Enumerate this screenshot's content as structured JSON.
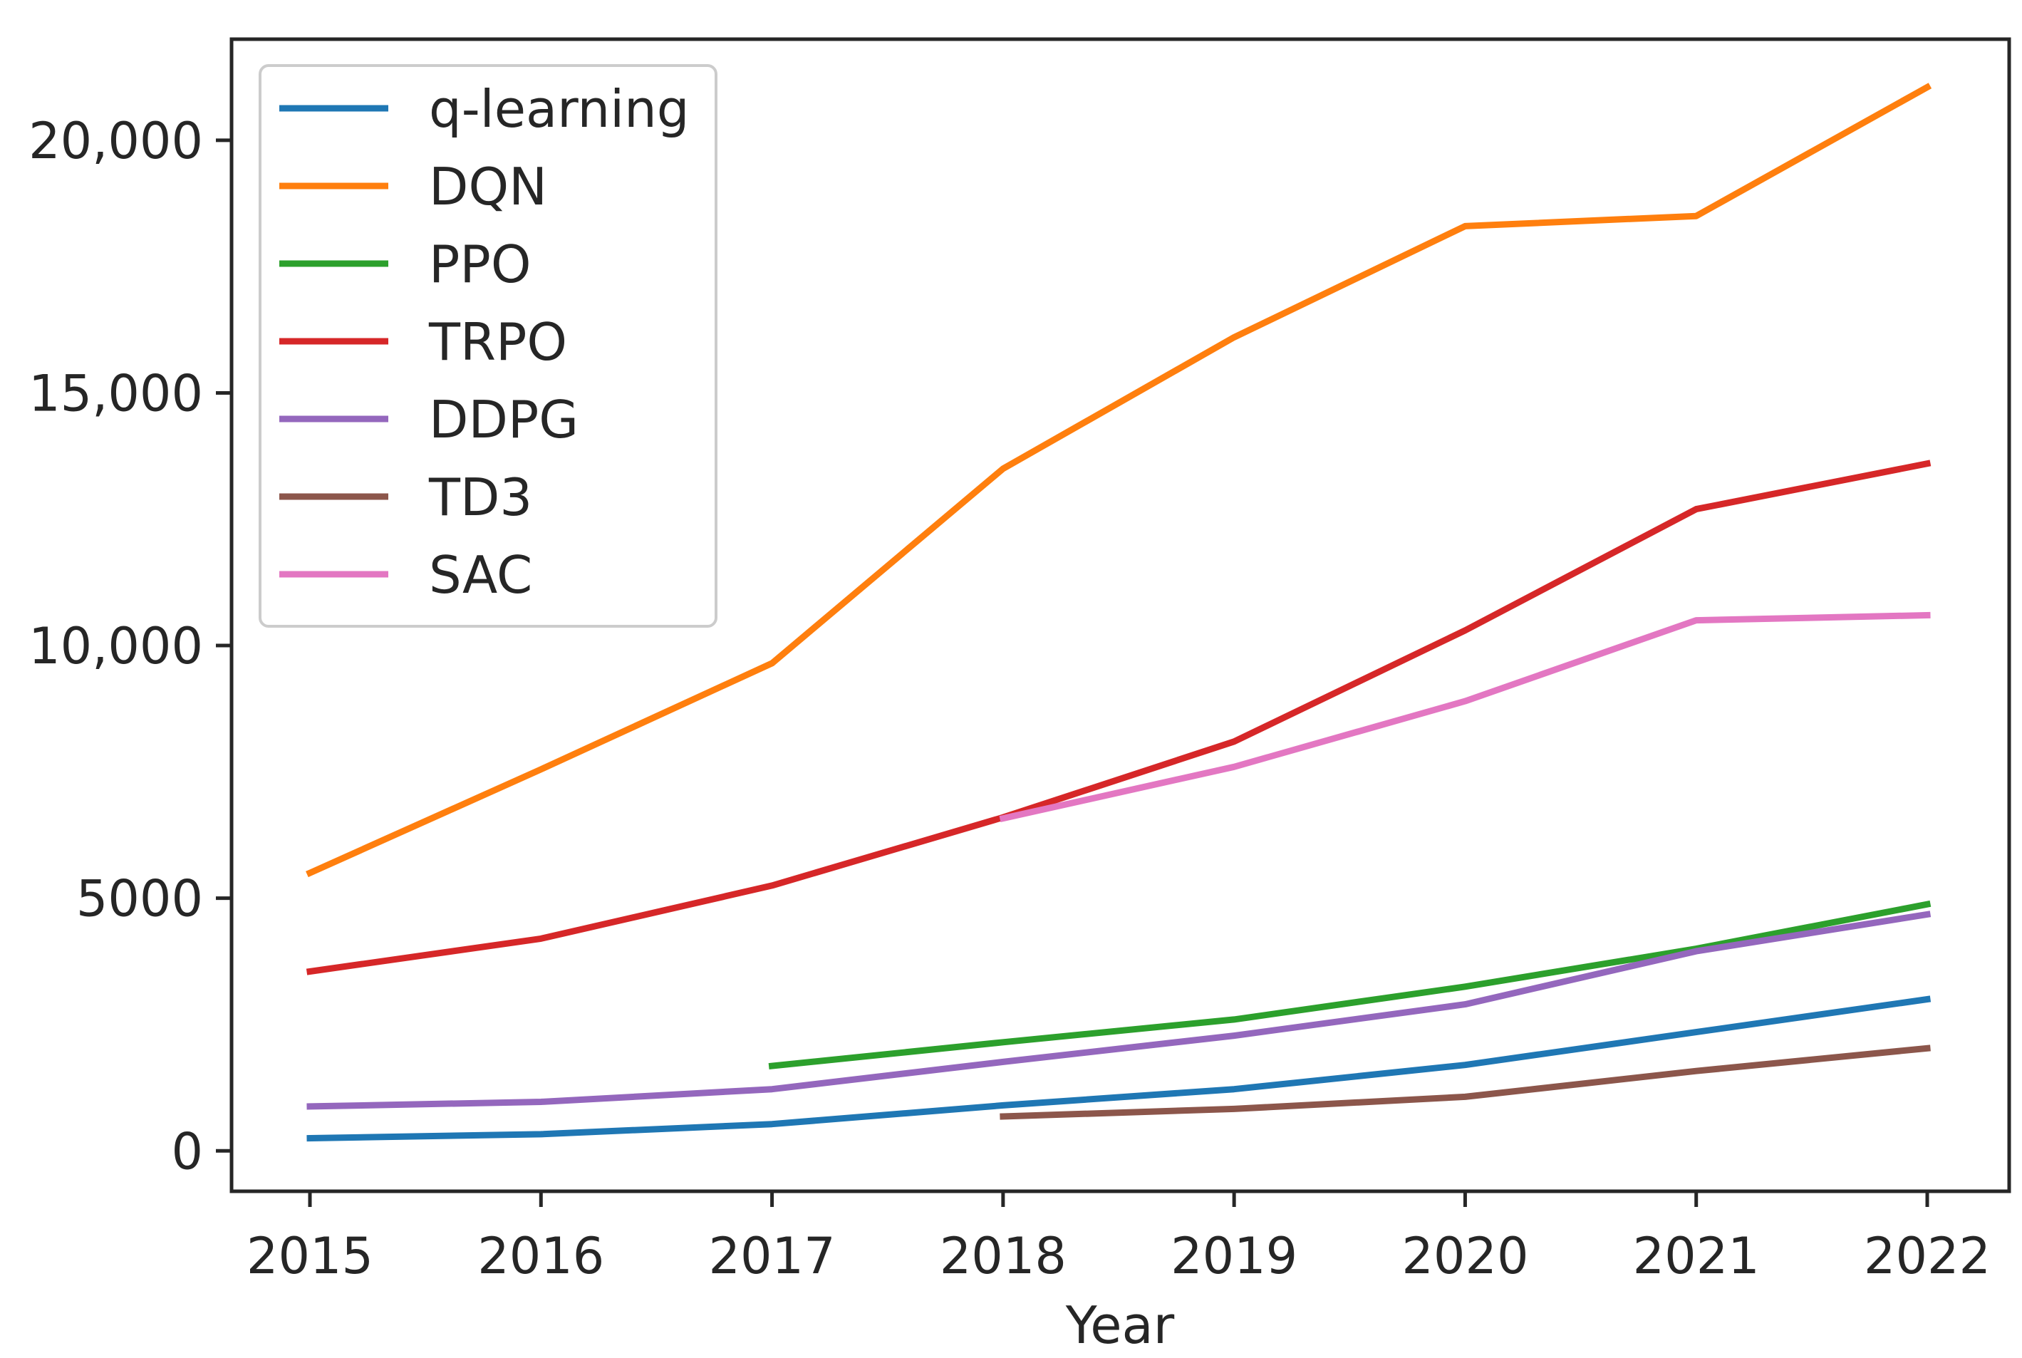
{
  "chart_data": {
    "type": "line",
    "title": "",
    "xlabel": "Year",
    "ylabel": "",
    "x": [
      2015,
      2016,
      2017,
      2018,
      2019,
      2020,
      2021,
      2022
    ],
    "x_tick_labels": [
      "2015",
      "2016",
      "2017",
      "2018",
      "2019",
      "2020",
      "2021",
      "2022"
    ],
    "ylim": [
      -800,
      22000
    ],
    "y_ticks": [
      0,
      5000,
      10000,
      15000,
      20000
    ],
    "y_tick_labels": [
      "0",
      "5000",
      "10,000",
      "15,000",
      "20,000"
    ],
    "grid": false,
    "legend_position": "top-left",
    "series": [
      {
        "name": "q-learning",
        "color": "#1f77b4",
        "values": [
          250,
          330,
          530,
          900,
          1220,
          1700,
          2350,
          3000
        ]
      },
      {
        "name": "DQN",
        "color": "#ff7f0e",
        "values": [
          5500,
          7550,
          9650,
          13500,
          16100,
          18300,
          18500,
          21050
        ]
      },
      {
        "name": "PPO",
        "color": "#2ca02c",
        "values": [
          null,
          null,
          1680,
          2150,
          2600,
          3250,
          4000,
          4880
        ]
      },
      {
        "name": "TRPO",
        "color": "#d62728",
        "values": [
          3550,
          4200,
          5250,
          6600,
          8100,
          10300,
          12700,
          13600
        ]
      },
      {
        "name": "DDPG",
        "color": "#9467bd",
        "values": [
          880,
          970,
          1220,
          1760,
          2280,
          2900,
          3950,
          4680
        ]
      },
      {
        "name": "TD3",
        "color": "#8c564b",
        "values": [
          null,
          null,
          null,
          680,
          830,
          1070,
          1580,
          2030
        ]
      },
      {
        "name": "SAC",
        "color": "#e377c2",
        "values": [
          null,
          null,
          null,
          6580,
          7600,
          8900,
          10500,
          10600
        ]
      }
    ]
  }
}
